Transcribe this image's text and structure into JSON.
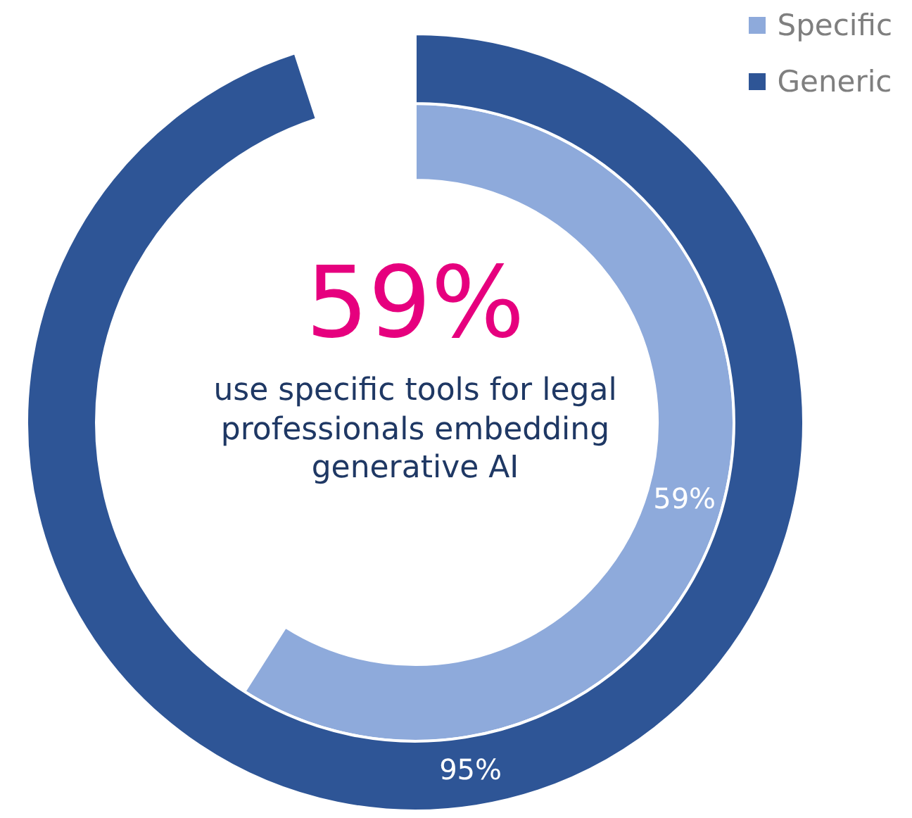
{
  "chart_data": {
    "type": "donut",
    "legend": "top right",
    "annotations": [
      "59%",
      "use specific tools for legal professionals embedding generative AI"
    ],
    "series": [
      {
        "name": "Generic",
        "color": "#2e5596",
        "values": [
          95
        ],
        "value_labels": [
          "95%"
        ]
      },
      {
        "name": "Specific",
        "color": "#8eaadb",
        "values": [
          59
        ],
        "value_labels": [
          "59%"
        ]
      }
    ]
  }
}
